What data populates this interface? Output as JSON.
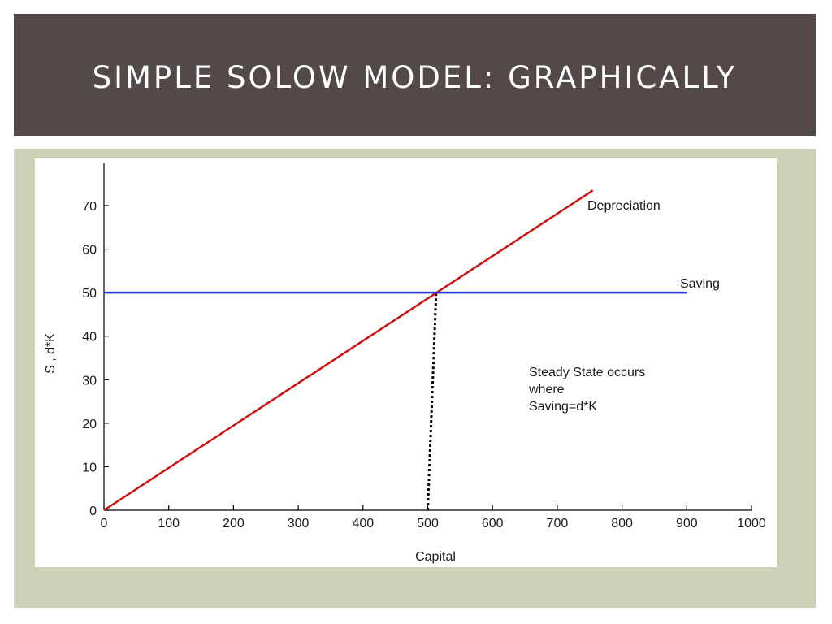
{
  "slide": {
    "title": "SIMPLE SOLOW MODEL:  GRAPHICALLY"
  },
  "chart_data": {
    "type": "line",
    "title": "",
    "xlabel": "Capital",
    "ylabel": "S , d*K",
    "xlim": [
      0,
      1000
    ],
    "ylim": [
      0,
      80
    ],
    "x_ticks": [
      0,
      100,
      200,
      300,
      400,
      500,
      600,
      700,
      800,
      900,
      1000
    ],
    "y_ticks": [
      0,
      10,
      20,
      30,
      40,
      50,
      60,
      70
    ],
    "grid": false,
    "series": [
      {
        "name": "Depreciation",
        "color": "#cc1111",
        "points": [
          [
            0,
            0
          ],
          [
            755,
            73.5
          ]
        ]
      },
      {
        "name": "Saving",
        "color": "#2233dd",
        "points": [
          [
            0,
            50
          ],
          [
            900,
            50
          ]
        ]
      }
    ],
    "steady_state": {
      "color": "#000000",
      "style": "dotted",
      "from": [
        500,
        0
      ],
      "to": [
        513,
        50
      ]
    },
    "annotation": {
      "lines": [
        "Steady State occurs",
        "where",
        "Saving=d*K"
      ]
    }
  }
}
